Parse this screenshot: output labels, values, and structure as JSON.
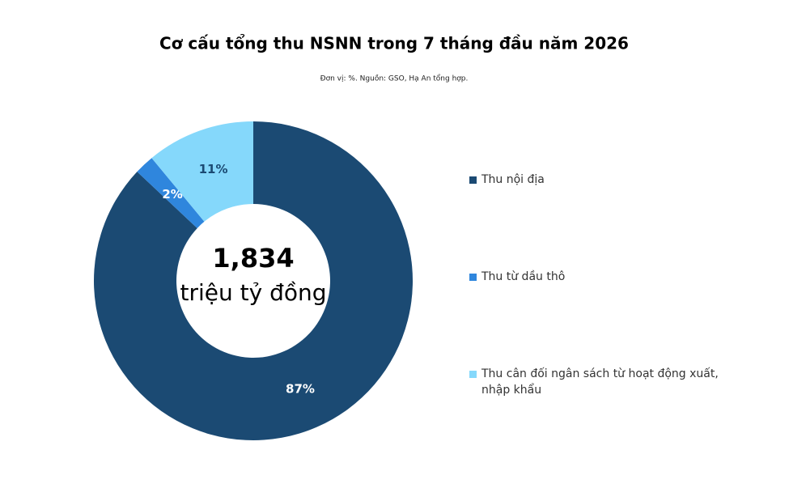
{
  "chart_data": {
    "type": "donut",
    "title": "Cơ cấu tổng thu NSNN trong 7 tháng đầu năm 2026",
    "subtitle": "Đơn vị: %. Nguồn: GSO, Hạ An tổng hợp.",
    "center_text": [
      "1,834",
      "triệu tỷ đồng"
    ],
    "categories": [
      "Thu nội địa",
      "Thu từ dầu thô",
      "Thu cân đối ngân sách từ hoạt động xuất, nhập khẩu"
    ],
    "values": [
      87,
      2,
      11
    ],
    "value_labels": [
      "87%",
      "2%",
      "11%"
    ],
    "colors": [
      "#1b4a73",
      "#2f86dd",
      "#85d8fb"
    ],
    "label_colors": [
      "#ffffff",
      "#ffffff",
      "#1b4a73"
    ],
    "legend_position": "right"
  }
}
